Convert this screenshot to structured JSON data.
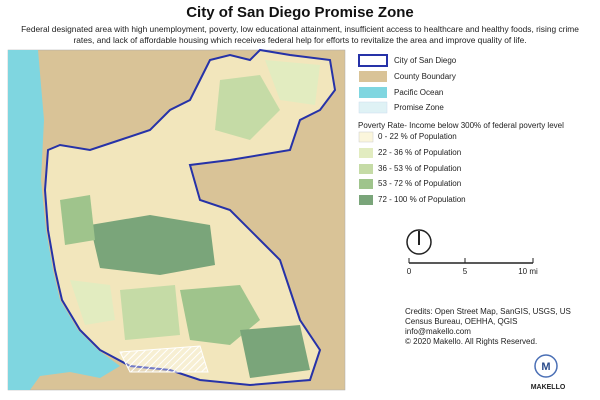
{
  "header": {
    "title": "City of San Diego Promise Zone",
    "description": "Federal designated area with high unemployment, poverty, low educational attainment, insufficient access to healthcare and healthy foods, rising crime rates, and lack of affordable housing which receives federal help for efforts to revitalize the area and improve quality of life."
  },
  "legend": {
    "items": [
      "City of San Diego",
      "County Boundary",
      "Pacific Ocean",
      "Promise Zone"
    ],
    "poverty_title": "Poverty Rate- Income below 300% of federal poverty level",
    "poverty_classes": [
      "0 - 22 % of Population",
      "22 - 36 % of Population",
      "36 - 53 % of Population",
      "53 - 72 % of Population",
      "72 - 100 % of Population"
    ]
  },
  "scale_bar": {
    "labels": [
      "0",
      "5",
      "10 mi"
    ]
  },
  "credits": [
    "Credits: Open Street Map, SanGIS, USGS, US",
    "Census Bureau, OEHHA, QGIS",
    "info@makello.com",
    "© 2020 Makello. All Rights Reserved."
  ],
  "logo": {
    "letter": "M",
    "text": "MAKELLO"
  }
}
